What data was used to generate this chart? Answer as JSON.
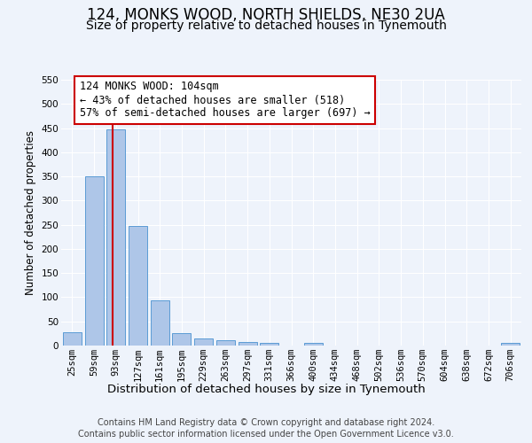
{
  "title": "124, MONKS WOOD, NORTH SHIELDS, NE30 2UA",
  "subtitle": "Size of property relative to detached houses in Tynemouth",
  "xlabel": "Distribution of detached houses by size in Tynemouth",
  "ylabel": "Number of detached properties",
  "bar_labels": [
    "25sqm",
    "59sqm",
    "93sqm",
    "127sqm",
    "161sqm",
    "195sqm",
    "229sqm",
    "263sqm",
    "297sqm",
    "331sqm",
    "366sqm",
    "400sqm",
    "434sqm",
    "468sqm",
    "502sqm",
    "536sqm",
    "570sqm",
    "604sqm",
    "638sqm",
    "672sqm",
    "706sqm"
  ],
  "bar_heights": [
    28,
    350,
    447,
    248,
    93,
    25,
    14,
    11,
    7,
    5,
    0,
    5,
    0,
    0,
    0,
    0,
    0,
    0,
    0,
    0,
    5
  ],
  "bar_color": "#aec6e8",
  "bar_edge_color": "#5b9bd5",
  "vline_color": "#cc0000",
  "annotation_title": "124 MONKS WOOD: 104sqm",
  "annotation_line1": "← 43% of detached houses are smaller (518)",
  "annotation_line2": "57% of semi-detached houses are larger (697) →",
  "annotation_box_color": "#ffffff",
  "annotation_box_edge": "#cc0000",
  "ylim": [
    0,
    550
  ],
  "yticks": [
    0,
    50,
    100,
    150,
    200,
    250,
    300,
    350,
    400,
    450,
    500,
    550
  ],
  "footer_line1": "Contains HM Land Registry data © Crown copyright and database right 2024.",
  "footer_line2": "Contains public sector information licensed under the Open Government Licence v3.0.",
  "bg_color": "#eef3fb",
  "plot_bg_color": "#eef3fb",
  "grid_color": "#ffffff",
  "title_fontsize": 12,
  "subtitle_fontsize": 10,
  "xlabel_fontsize": 9.5,
  "ylabel_fontsize": 8.5,
  "tick_fontsize": 7.5,
  "annotation_fontsize": 8.5,
  "footer_fontsize": 7
}
